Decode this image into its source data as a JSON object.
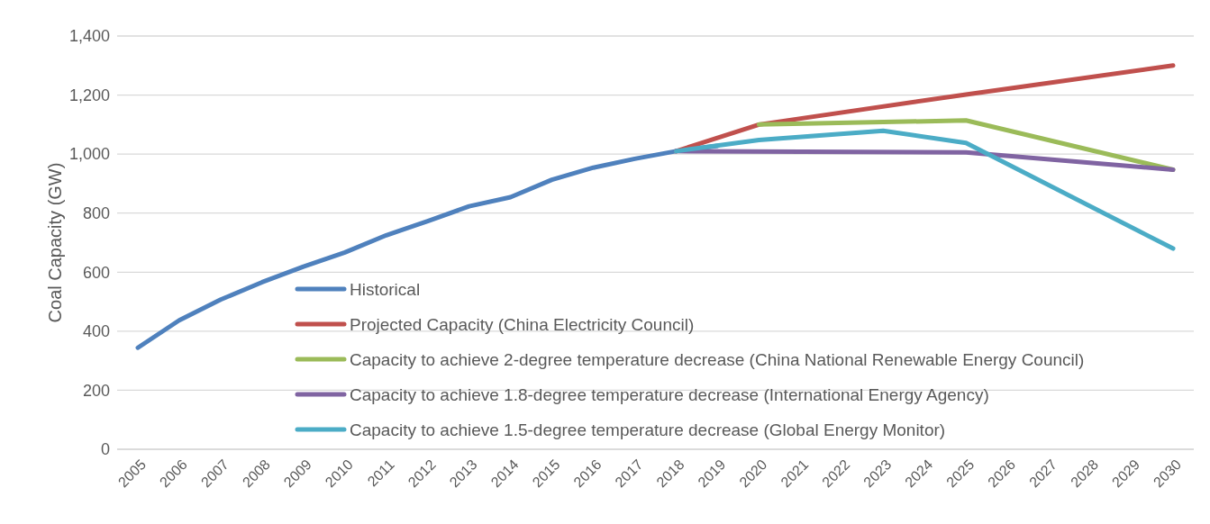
{
  "chart_data": {
    "type": "line",
    "ylabel": "Coal Capacity (GW)",
    "xlim": [
      2004.5,
      2030.5
    ],
    "xticks": [
      2005,
      2006,
      2007,
      2008,
      2009,
      2010,
      2011,
      2012,
      2013,
      2014,
      2015,
      2016,
      2017,
      2018,
      2019,
      2020,
      2021,
      2022,
      2023,
      2024,
      2025,
      2026,
      2027,
      2028,
      2029,
      2030
    ],
    "ylim": [
      0,
      1400
    ],
    "yticks": [
      0,
      200,
      400,
      600,
      800,
      {
        "value": 1000,
        "label": "1,000"
      },
      {
        "value": 1200,
        "label": "1,200"
      },
      {
        "value": 1400,
        "label": "1,400"
      }
    ],
    "grid": "y",
    "legend": "bottom",
    "marker": "none",
    "line_style": "solid",
    "series": [
      {
        "name": "Historical",
        "color": "#4f81bd",
        "x": [
          2005,
          2006,
          2007,
          2008,
          2009,
          2010,
          2011,
          2012,
          2013,
          2014,
          2015,
          2016,
          2017,
          2018,
          2019
        ],
        "values": [
          344,
          437,
          507,
          566,
          619,
          667,
          725,
          773,
          823,
          854,
          913,
          954,
          984,
          1010,
          1028
        ]
      },
      {
        "name": "Projected Capacity (China Electricity Council)",
        "color": "#c0504d",
        "x": [
          2018,
          2020,
          2025,
          2030
        ],
        "values": [
          1010,
          1100,
          1202,
          1300
        ]
      },
      {
        "name": "Capacity to achieve 2-degree temperature decrease (China National Renewable Energy Council)",
        "color": "#9bbb59",
        "x": [
          2020,
          2025,
          2030
        ],
        "values": [
          1100,
          1114,
          947
        ]
      },
      {
        "name": "Capacity to achieve 1.8-degree temperature decrease (International Energy Agency)",
        "color": "#8064a2",
        "x": [
          2018,
          2025,
          2030
        ],
        "values": [
          1010,
          1006,
          947
        ]
      },
      {
        "name": "Capacity to achieve 1.5-degree temperature decrease (Global Energy Monitor)",
        "color": "#4bacc6",
        "x": [
          2018,
          2020,
          2023,
          2025,
          2030
        ],
        "values": [
          1010,
          1048,
          1079,
          1038,
          680
        ]
      }
    ]
  }
}
